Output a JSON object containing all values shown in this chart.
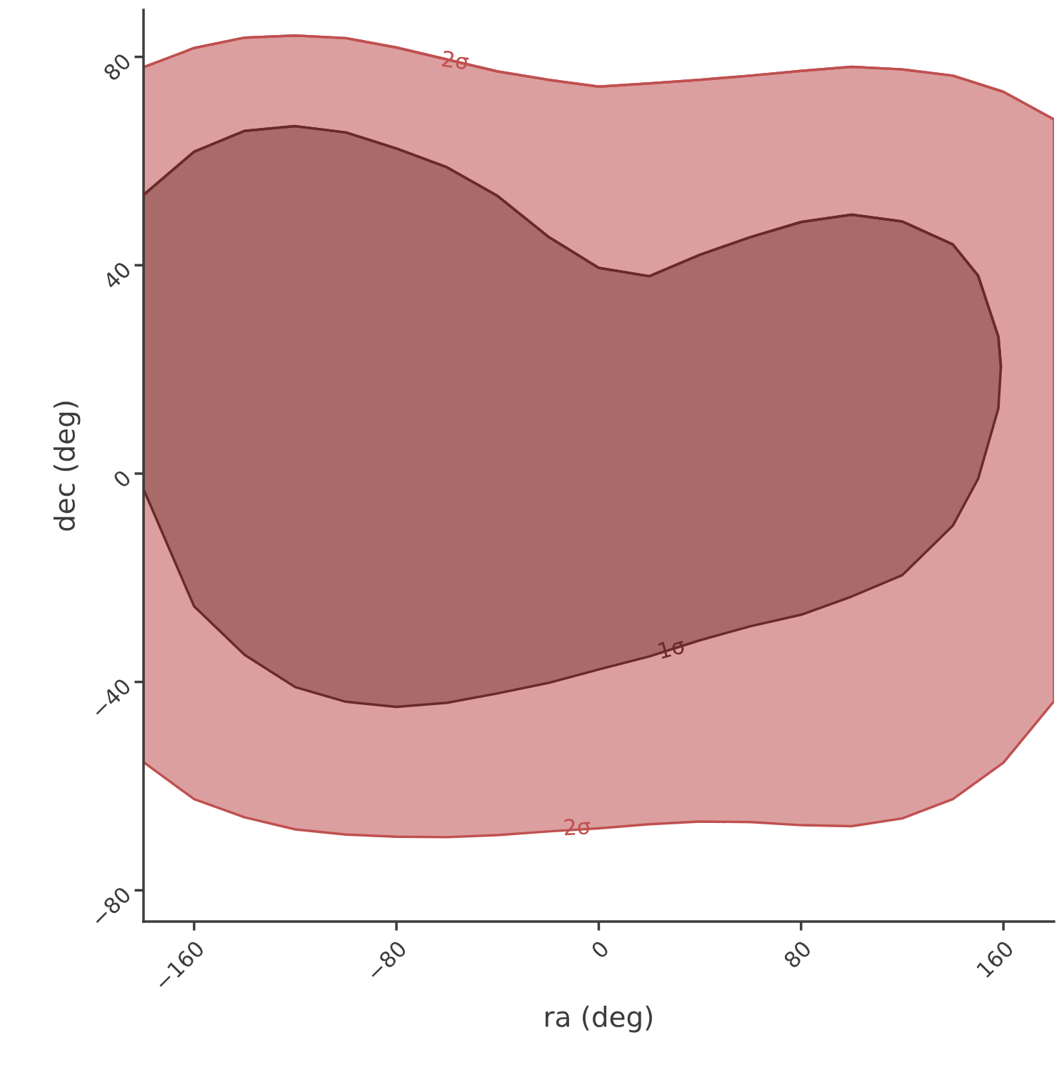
{
  "chart_data": {
    "type": "line",
    "xlabel": "ra (deg)",
    "ylabel": "dec (deg)",
    "xlim": [
      -180,
      180
    ],
    "ylim": [
      -86,
      89
    ],
    "xticks": [
      {
        "value": -160,
        "label": "−160"
      },
      {
        "value": -80,
        "label": "−80"
      },
      0,
      80,
      160
    ],
    "yticks": [
      {
        "value": -80,
        "label": "−80"
      },
      {
        "value": -40,
        "label": "−40"
      },
      0,
      40,
      80
    ],
    "grid": false,
    "legend": false,
    "marker": "none",
    "series": [
      {
        "color": "#c05050",
        "x": [
          -180,
          -160,
          -140,
          -120,
          -100,
          -80,
          -60,
          -40,
          -20,
          0,
          20,
          40,
          60,
          80,
          100,
          120,
          140,
          160,
          180
        ],
        "values": [
          78,
          81.7,
          83.7,
          84.1,
          83.6,
          81.8,
          79.5,
          77.2,
          75.6,
          74.3,
          74.9,
          75.6,
          76.4,
          77.3,
          78.1,
          77.6,
          76.4,
          73.3,
          68
        ],
        "upper": [
          78,
          81.7,
          83.7,
          84.1,
          83.6,
          81.8,
          79.5,
          77.2,
          75.6,
          74.3,
          74.9,
          75.6,
          76.4,
          77.3,
          78.1,
          77.6,
          76.4,
          73.3,
          68
        ],
        "lower": [
          -55.4,
          -62.5,
          -66,
          -68.3,
          -69.3,
          -69.7,
          -69.8,
          -69.4,
          -68.7,
          -68.1,
          -67.3,
          -66.8,
          -66.9,
          -67.5,
          -67.7,
          -66.2,
          -62.5,
          -55.5,
          -43.7
        ]
      },
      {
        "color": "#6b2a2a",
        "x": [
          -180,
          -160,
          -140,
          -120,
          -100,
          -80,
          -60,
          -40,
          -20,
          0,
          20,
          40,
          60,
          80,
          100,
          120,
          140,
          150,
          158,
          159
        ],
        "values": [
          53.5,
          61.8,
          65.8,
          66.7,
          65.5,
          62.4,
          58.8,
          53.3,
          45.5,
          39.5,
          37.9,
          42,
          45.4,
          48.3,
          49.7,
          48.4,
          44,
          38,
          26.3,
          20.5
        ],
        "upper": [
          53.5,
          61.8,
          65.8,
          66.7,
          65.5,
          62.4,
          58.8,
          53.3,
          45.5,
          39.5,
          37.9,
          42,
          45.4,
          48.3,
          49.7,
          48.4,
          44,
          38,
          26.3,
          20.5
        ],
        "lower": [
          -3,
          -25.5,
          -34.8,
          -41,
          -43.8,
          -44.8,
          -44,
          -42.2,
          -40.2,
          -37.6,
          -35.1,
          -32,
          -29.3,
          -27.1,
          -23.6,
          -19.5,
          -10,
          -1,
          12.5,
          20.5
        ]
      }
    ],
    "annotations": [
      "2σ",
      "2σ",
      "1σ"
    ]
  }
}
